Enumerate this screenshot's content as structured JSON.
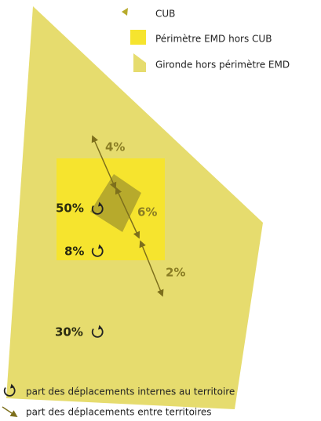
{
  "legend": {
    "items": [
      "CUB",
      "Périmètre EMD hors CUB",
      "Gironde hors périmètre EMD"
    ]
  },
  "labels": {
    "flow_top": "4%",
    "cub_internal": "50%",
    "flow_middle": "6%",
    "emd_internal": "8%",
    "flow_bottom": "2%",
    "gironde_internal": "30%"
  },
  "footer": {
    "internal": "part des déplacements internes au territoire",
    "between": "part des déplacements entre territoires"
  }
}
